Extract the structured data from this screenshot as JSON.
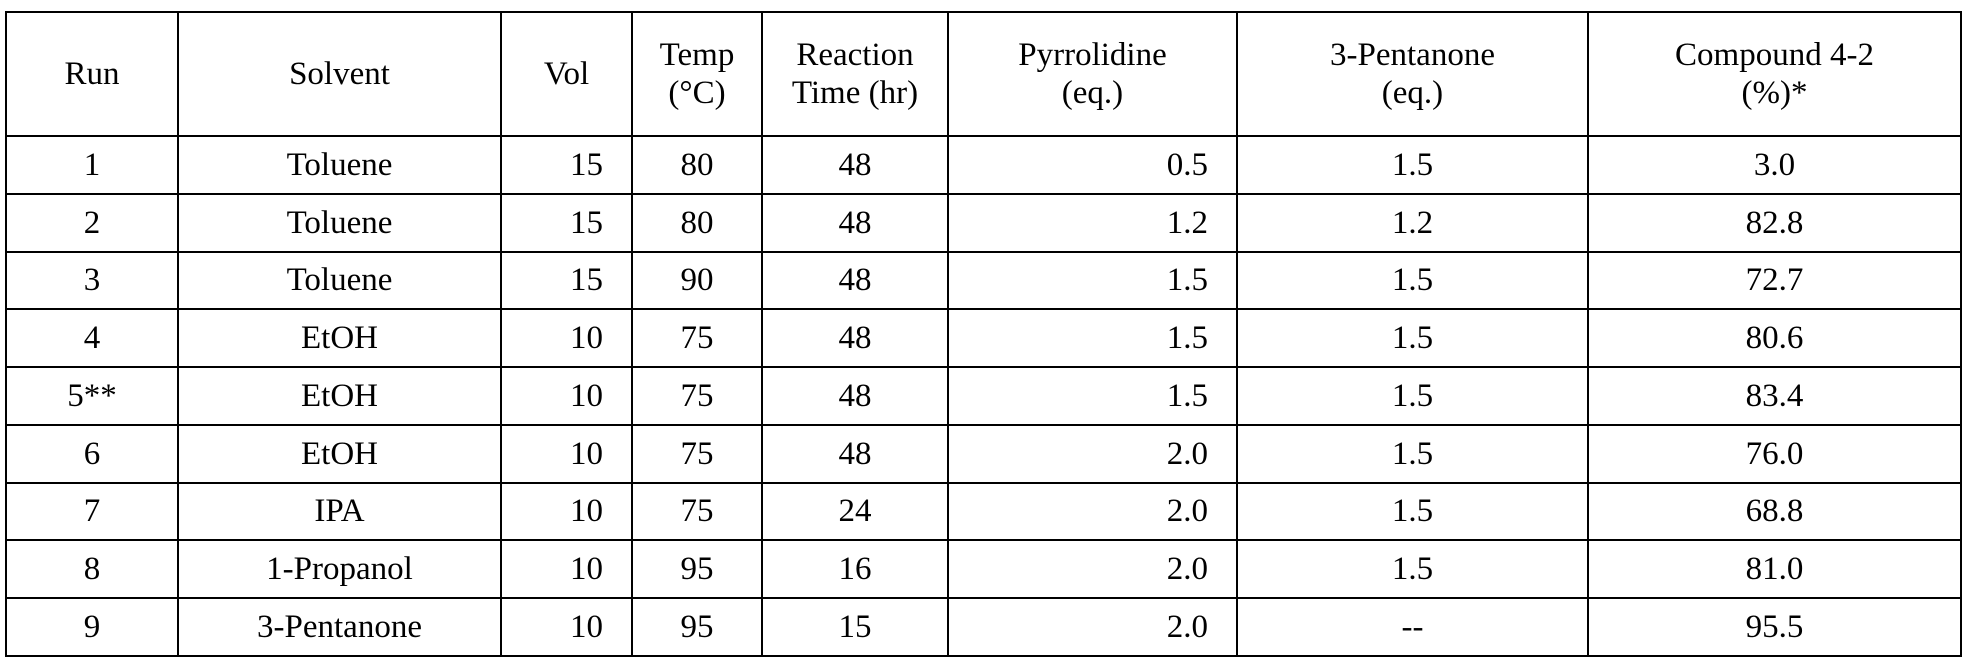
{
  "table": {
    "headers": [
      [
        "Run"
      ],
      [
        "Solvent"
      ],
      [
        "Vol"
      ],
      [
        "Temp",
        "(°C)"
      ],
      [
        "Reaction",
        "Time (hr)"
      ],
      [
        "Pyrrolidine",
        "(eq.)"
      ],
      [
        "3-Pentanone",
        "(eq.)"
      ],
      [
        "Compound 4-2",
        "(%)*"
      ]
    ],
    "rows": [
      [
        "1",
        "Toluene",
        "15",
        "80",
        "48",
        "0.5",
        "1.5",
        "3.0"
      ],
      [
        "2",
        "Toluene",
        "15",
        "80",
        "48",
        "1.2",
        "1.2",
        "82.8"
      ],
      [
        "3",
        "Toluene",
        "15",
        "90",
        "48",
        "1.5",
        "1.5",
        "72.7"
      ],
      [
        "4",
        "EtOH",
        "10",
        "75",
        "48",
        "1.5",
        "1.5",
        "80.6"
      ],
      [
        "5**",
        "EtOH",
        "10",
        "75",
        "48",
        "1.5",
        "1.5",
        "83.4"
      ],
      [
        "6",
        "EtOH",
        "10",
        "75",
        "48",
        "2.0",
        "1.5",
        "76.0"
      ],
      [
        "7",
        "IPA",
        "10",
        "75",
        "24",
        "2.0",
        "1.5",
        "68.8"
      ],
      [
        "8",
        "1-Propanol",
        "10",
        "95",
        "16",
        "2.0",
        "1.5",
        "81.0"
      ],
      [
        "9",
        "3-Pentanone",
        "10",
        "95",
        "15",
        "2.0",
        "--",
        "95.5"
      ]
    ]
  }
}
